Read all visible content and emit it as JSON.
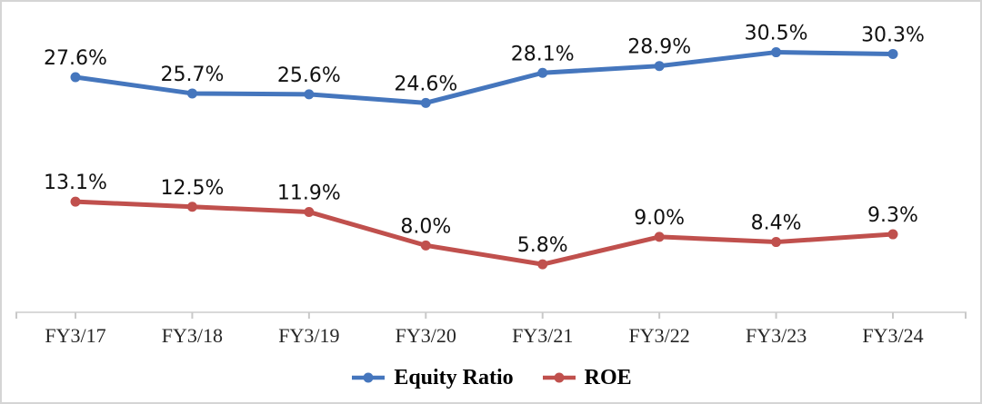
{
  "chart_data": {
    "type": "line",
    "categories": [
      "FY3/17",
      "FY3/18",
      "FY3/19",
      "FY3/20",
      "FY3/21",
      "FY3/22",
      "FY3/23",
      "FY3/24"
    ],
    "series": [
      {
        "name": "Equity Ratio",
        "color": "#4576BD",
        "values": [
          27.6,
          25.7,
          25.6,
          24.6,
          28.1,
          28.9,
          30.5,
          30.3
        ],
        "labels": [
          "27.6%",
          "25.7%",
          "25.6%",
          "24.6%",
          "28.1%",
          "28.9%",
          "30.5%",
          "30.3%"
        ]
      },
      {
        "name": "ROE",
        "color": "#C0504D",
        "values": [
          13.1,
          12.5,
          11.9,
          8.0,
          5.8,
          9.0,
          8.4,
          9.3
        ],
        "labels": [
          "13.1%",
          "12.5%",
          "11.9%",
          "8.0%",
          "5.8%",
          "9.0%",
          "8.4%",
          "9.3%"
        ]
      }
    ],
    "title": "",
    "xlabel": "",
    "ylabel": "",
    "ylim": [
      0,
      35
    ],
    "grid": false,
    "legend_position": "bottom",
    "axis_color": "#D9D9D9",
    "tick_color": "#C9C9C9",
    "data_label_color": "#111111",
    "axis_label_color": "#262626"
  }
}
